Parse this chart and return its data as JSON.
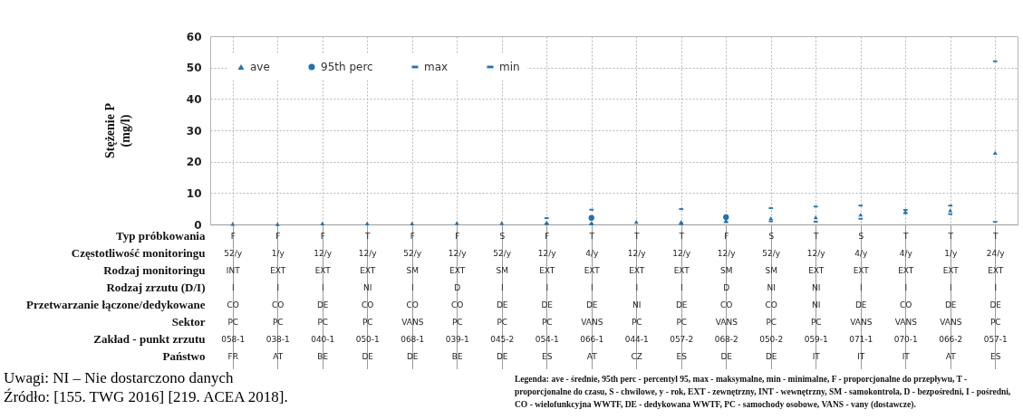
{
  "chart_data": {
    "type": "scatter",
    "ylabel": "Stężenie P\n(mg/l)",
    "xlabel": "Typ próbkowania\nCzęstotliwość monitoringu\nRodzaj monitoringu\nRodzaj zrzutu (D/I)\nPrzetwarzanie łączone/dedykowane\nSektor\nZakład - punkt zrzutu\nPaństwo",
    "categories": [
      "F\n52/y\nINT\nI\nCO\nPC\n058-1\nFR",
      "F\n1/y\nEXT\nI\nCO\nPC\n038-1\nAT",
      "F\n12/y\nEXT\nI\nDE\nPC\n040-1\nBE",
      "T\n12/y\nEXT\nNI\nCO\nPC\n050-1\nDE",
      "F\n52/y\nSM\nI\nCO\nVANS\n068-1\nDE",
      "F\n12/y\nEXT\nD\nCO\nPC\n039-1\nBE",
      "S\n52/y\nSM\nI\nDE\nPC\n045-2\nDE",
      "F\n12/y\nEXT\nI\nDE\nPC\n054-1\nES",
      "T\n4/y\nEXT\nI\nDE\nVANS\n066-1\nAT",
      "T\n12/y\nEXT\nI\nNI\nPC\n044-1\nCZ",
      "T\n12/y\nEXT\nI\nDE\nPC\n057-2\nES",
      "F\n12/y\nSM\nD\nCO\nVANS\n068-2\nDE",
      "S\n52/y\nSM\nNI\nCO\nPC\n050-2\nDE",
      "T\n12/y\nEXT\nNI\nNI\nPC\n059-1\nIT",
      "S\n4/y\nEXT\nI\nDE\nVANS\n071-1\nIT",
      "T\n4/y\nEXT\nI\nCO\nVANS\n070-1\nIT",
      "T\n1/y\nEXT\nI\nDE\nVANS\n066-2\nAT",
      "T\n24/y\nEXT\nI\nDE\nPC\n057-1\nES"
    ],
    "series": [
      {
        "name": "ave",
        "color": "#2471b0",
        "marker": "triangle",
        "values": [
          0.2,
          0.1,
          0.3,
          0.3,
          0.3,
          0.5,
          0.5,
          0.6,
          0.5,
          0.8,
          0.8,
          1.2,
          2.0,
          2.3,
          3.1,
          4.0,
          4.5,
          22.8
        ]
      },
      {
        "name": "95th perc",
        "color": "#2471b0",
        "marker": "circle",
        "values": [
          null,
          null,
          null,
          null,
          null,
          null,
          null,
          null,
          2.1,
          null,
          null,
          2.3,
          null,
          null,
          null,
          null,
          null,
          null
        ]
      },
      {
        "name": "max",
        "color": "#2471b0",
        "values": [
          null,
          null,
          null,
          null,
          null,
          null,
          null,
          2.0,
          4.7,
          null,
          4.9,
          null,
          5.2,
          5.7,
          6.0,
          4.6,
          6.0,
          52.0
        ]
      },
      {
        "name": "min",
        "color": "#2471b0",
        "values": [
          null,
          null,
          null,
          null,
          null,
          null,
          null,
          0.1,
          0.1,
          null,
          0.1,
          0.7,
          1.0,
          0.9,
          1.8,
          3.6,
          3.3,
          0.8
        ]
      }
    ],
    "ylim": [
      0,
      60
    ],
    "yticks": [
      0,
      10,
      20,
      30,
      40,
      50,
      60
    ],
    "grid": true,
    "legend": "top left",
    "annotations": [
      "Uwagi: NI – Nie dostarczono danych",
      "Źródło: [155. TWG 2016] [219. ACEA 2018].",
      "Legenda: ave - średnie, 95th perc - percentyl 95, max - maksymalne, min - minimalne, F - proporcjonalne do przepływu, T - proporcjonalne do czasu, S - chwilowe, y - rok, EXT - zewnętrzny, INT - wewnętrzny, SM - samokontrola, D - bezpośredni, I - pośredni, CO - wielofunkcyjna WWTF, DE - dedykowana WWTF, PC - samochody osobowe, VANS - vany (dostawcze)."
    ]
  }
}
